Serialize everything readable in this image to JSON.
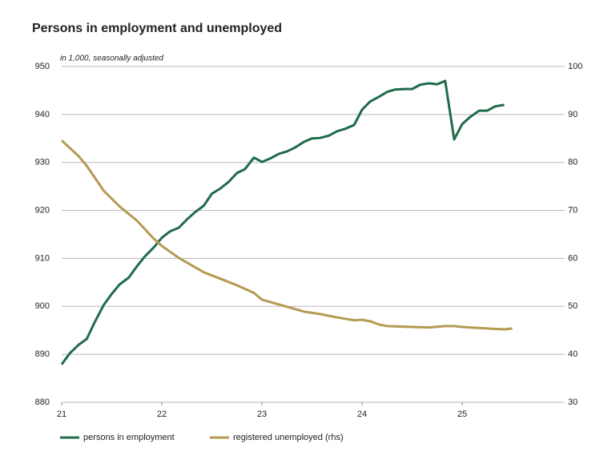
{
  "chart_data": {
    "type": "line",
    "title": "Persons in employment and unemployed",
    "subtitle": "in 1,000, seasonally adjusted",
    "xlim": [
      21,
      26
    ],
    "xticks": [
      21,
      22,
      23,
      24,
      25
    ],
    "ylim": [
      880,
      950
    ],
    "yticks": [
      880,
      890,
      900,
      910,
      920,
      930,
      940,
      950
    ],
    "y2lim": [
      30,
      100
    ],
    "y2ticks": [
      30,
      40,
      50,
      60,
      70,
      80,
      90,
      100
    ],
    "grid": true,
    "legend": "bottom",
    "series": [
      {
        "name": "persons in employment",
        "color": "#1f6b4a",
        "x": [
          21.0,
          21.08,
          21.17,
          21.25,
          21.33,
          21.42,
          21.5,
          21.58,
          21.67,
          21.75,
          21.83,
          21.92,
          22.0,
          22.08,
          22.17,
          22.25,
          22.33,
          22.42,
          22.5,
          22.58,
          22.67,
          22.75,
          22.83,
          22.92,
          23.0,
          23.08,
          23.17,
          23.25,
          23.33,
          23.42,
          23.5,
          23.58,
          23.67,
          23.75,
          23.83,
          23.92,
          24.0,
          24.08,
          24.17,
          24.25,
          24.33,
          24.42,
          24.5,
          24.58,
          24.67,
          24.75,
          24.83,
          24.92,
          25.0,
          25.08,
          25.17,
          25.25,
          25.33,
          25.42
        ],
        "values": [
          887.9,
          890.2,
          892,
          893.2,
          896.7,
          900.3,
          902.6,
          904.6,
          906,
          908.3,
          910.4,
          912.3,
          914.3,
          915.6,
          916.4,
          918.1,
          919.6,
          921,
          923.5,
          924.5,
          926,
          927.8,
          928.6,
          931,
          930.1,
          930.8,
          931.8,
          932.3,
          933.1,
          934.3,
          935,
          935.1,
          935.6,
          936.5,
          937,
          937.8,
          941,
          942.7,
          943.7,
          944.7,
          945.2,
          945.3,
          945.3,
          946.2,
          946.5,
          946.3,
          947,
          934.8,
          938,
          939.5,
          940.8,
          940.8,
          941.7,
          942
        ]
      },
      {
        "name": "registered unemployed (rhs)",
        "color": "#b59a52",
        "axis": "y2",
        "x": [
          21.0,
          21.17,
          21.25,
          21.42,
          21.58,
          21.75,
          21.92,
          22.0,
          22.17,
          22.42,
          22.58,
          22.75,
          22.92,
          23.0,
          23.17,
          23.42,
          23.58,
          23.75,
          23.92,
          24.0,
          24.08,
          24.17,
          24.25,
          24.5,
          24.67,
          24.83,
          24.92,
          25.0,
          25.25,
          25.42,
          25.5
        ],
        "values": [
          84.6,
          81.3,
          79.3,
          74.1,
          70.8,
          67.9,
          64.1,
          62.6,
          60.1,
          57.1,
          55.8,
          54.4,
          52.8,
          51.4,
          50.4,
          48.9,
          48.4,
          47.7,
          47.1,
          47.2,
          46.9,
          46.2,
          45.9,
          45.7,
          45.6,
          45.9,
          45.9,
          45.7,
          45.4,
          45.2,
          45.4
        ]
      }
    ]
  }
}
